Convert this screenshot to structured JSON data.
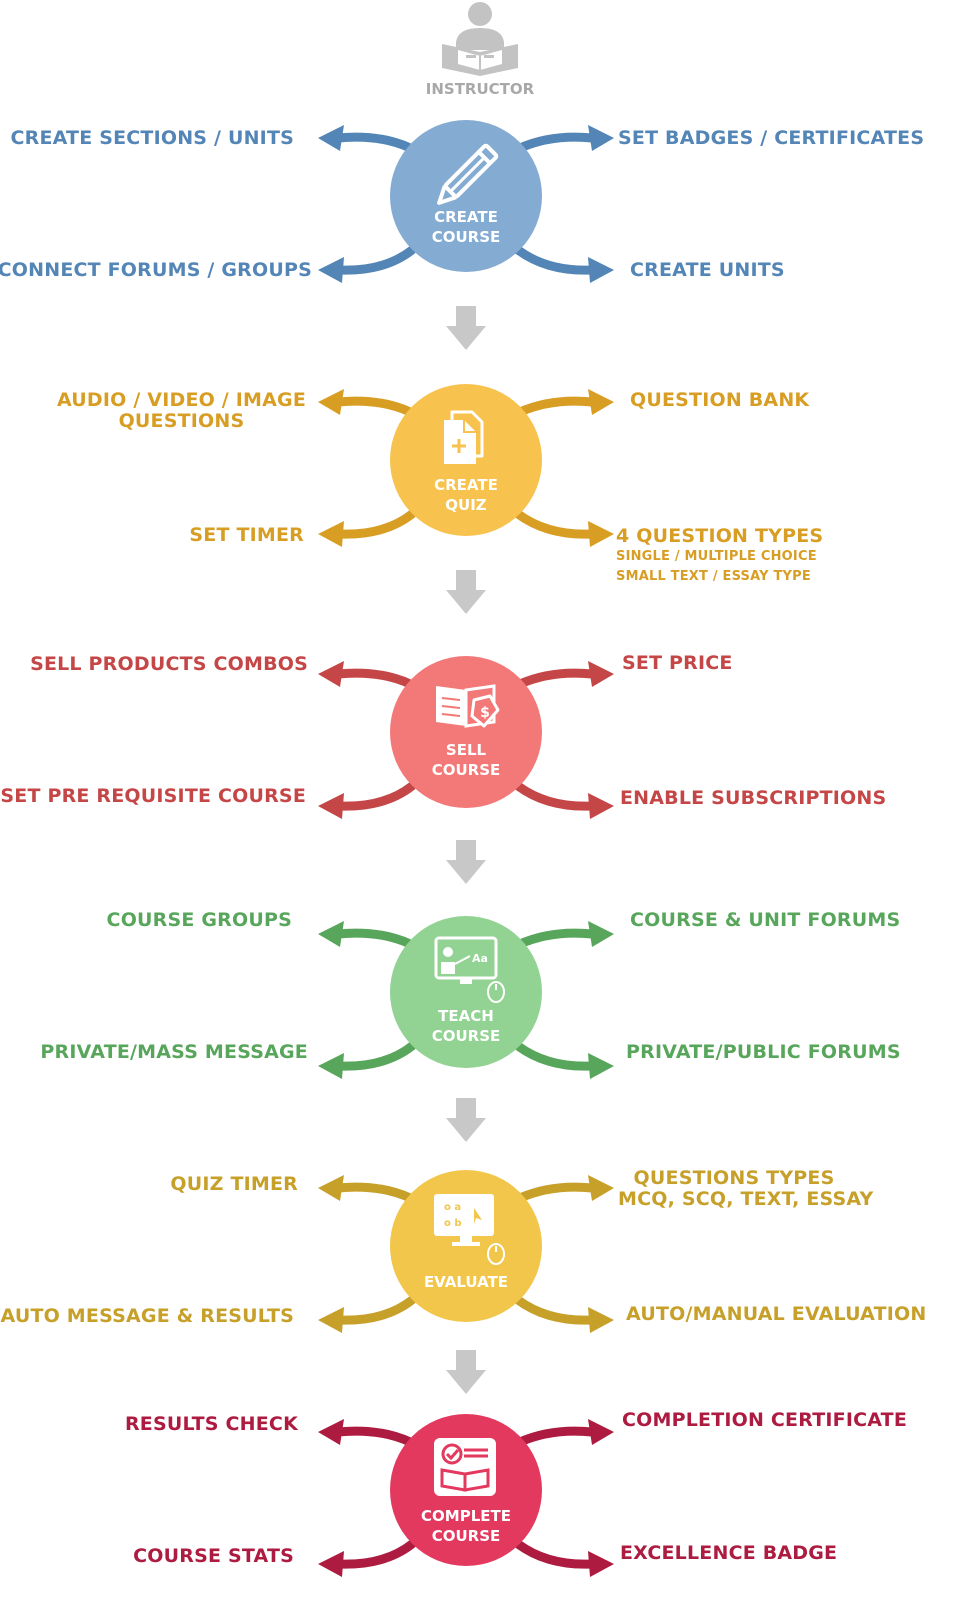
{
  "instructor": {
    "label": "INSTRUCTOR",
    "icon": "reading-person-icon"
  },
  "stages": [
    {
      "id": "create-course",
      "title_line1": "CREATE",
      "title_line2": "COURSE",
      "icon": "pencil-icon",
      "color": "#84abd1",
      "accent": "#5385b6",
      "top_left": "CREATE SECTIONS / UNITS",
      "top_right": "SET BADGES / CERTIFICATES",
      "bottom_left": "CONNECT FORUMS / GROUPS",
      "bottom_right": "CREATE UNITS"
    },
    {
      "id": "create-quiz",
      "title_line1": "CREATE",
      "title_line2": "QUIZ",
      "icon": "add-document-icon",
      "color": "#f8c24e",
      "accent": "#d89e24",
      "top_left_line1": "AUDIO / VIDEO / IMAGE",
      "top_left_line2": "QUESTIONS",
      "top_right": "QUESTION BANK",
      "bottom_left": "SET TIMER",
      "bottom_right": "4 QUESTION TYPES",
      "bottom_right_sub1": "SINGLE / MULTIPLE CHOICE",
      "bottom_right_sub2": "SMALL TEXT / ESSAY TYPE"
    },
    {
      "id": "sell-course",
      "title_line1": "SELL",
      "title_line2": "COURSE",
      "icon": "price-tag-book-icon",
      "color": "#f37878",
      "accent": "#c54646",
      "top_left": "SELL PRODUCTS COMBOS",
      "top_right": "SET PRICE",
      "bottom_left": "SET PRE REQUISITE COURSE",
      "bottom_right": "ENABLE SUBSCRIPTIONS"
    },
    {
      "id": "teach-course",
      "title_line1": "TEACH",
      "title_line2": "COURSE",
      "icon": "teacher-board-icon",
      "color": "#92d293",
      "accent": "#58a65b",
      "top_left": "COURSE GROUPS",
      "top_right": "COURSE & UNIT FORUMS",
      "bottom_left": "PRIVATE/MASS MESSAGE",
      "bottom_right": "PRIVATE/PUBLIC FORUMS"
    },
    {
      "id": "evaluate",
      "title_line1": "EVALUATE",
      "title_line2": "",
      "icon": "monitor-quiz-icon",
      "color": "#f1c64a",
      "accent": "#c7a02a",
      "top_left": "QUIZ TIMER",
      "top_right_line1": "QUESTIONS TYPES",
      "top_right_line2": "MCQ, SCQ, TEXT, ESSAY",
      "bottom_left": "AUTO MESSAGE & RESULTS",
      "bottom_right": "AUTO/MANUAL EVALUATION"
    },
    {
      "id": "complete-course",
      "title_line1": "COMPLETE",
      "title_line2": "COURSE",
      "icon": "certificate-book-icon",
      "color": "#e3395f",
      "accent": "#ae1b40",
      "top_left": "RESULTS CHECK",
      "top_right": "COMPLETION CERTIFICATE",
      "bottom_left": "COURSE STATS",
      "bottom_right": "EXCELLENCE BADGE"
    }
  ],
  "flow_arrow_color": "#c8c8c8"
}
